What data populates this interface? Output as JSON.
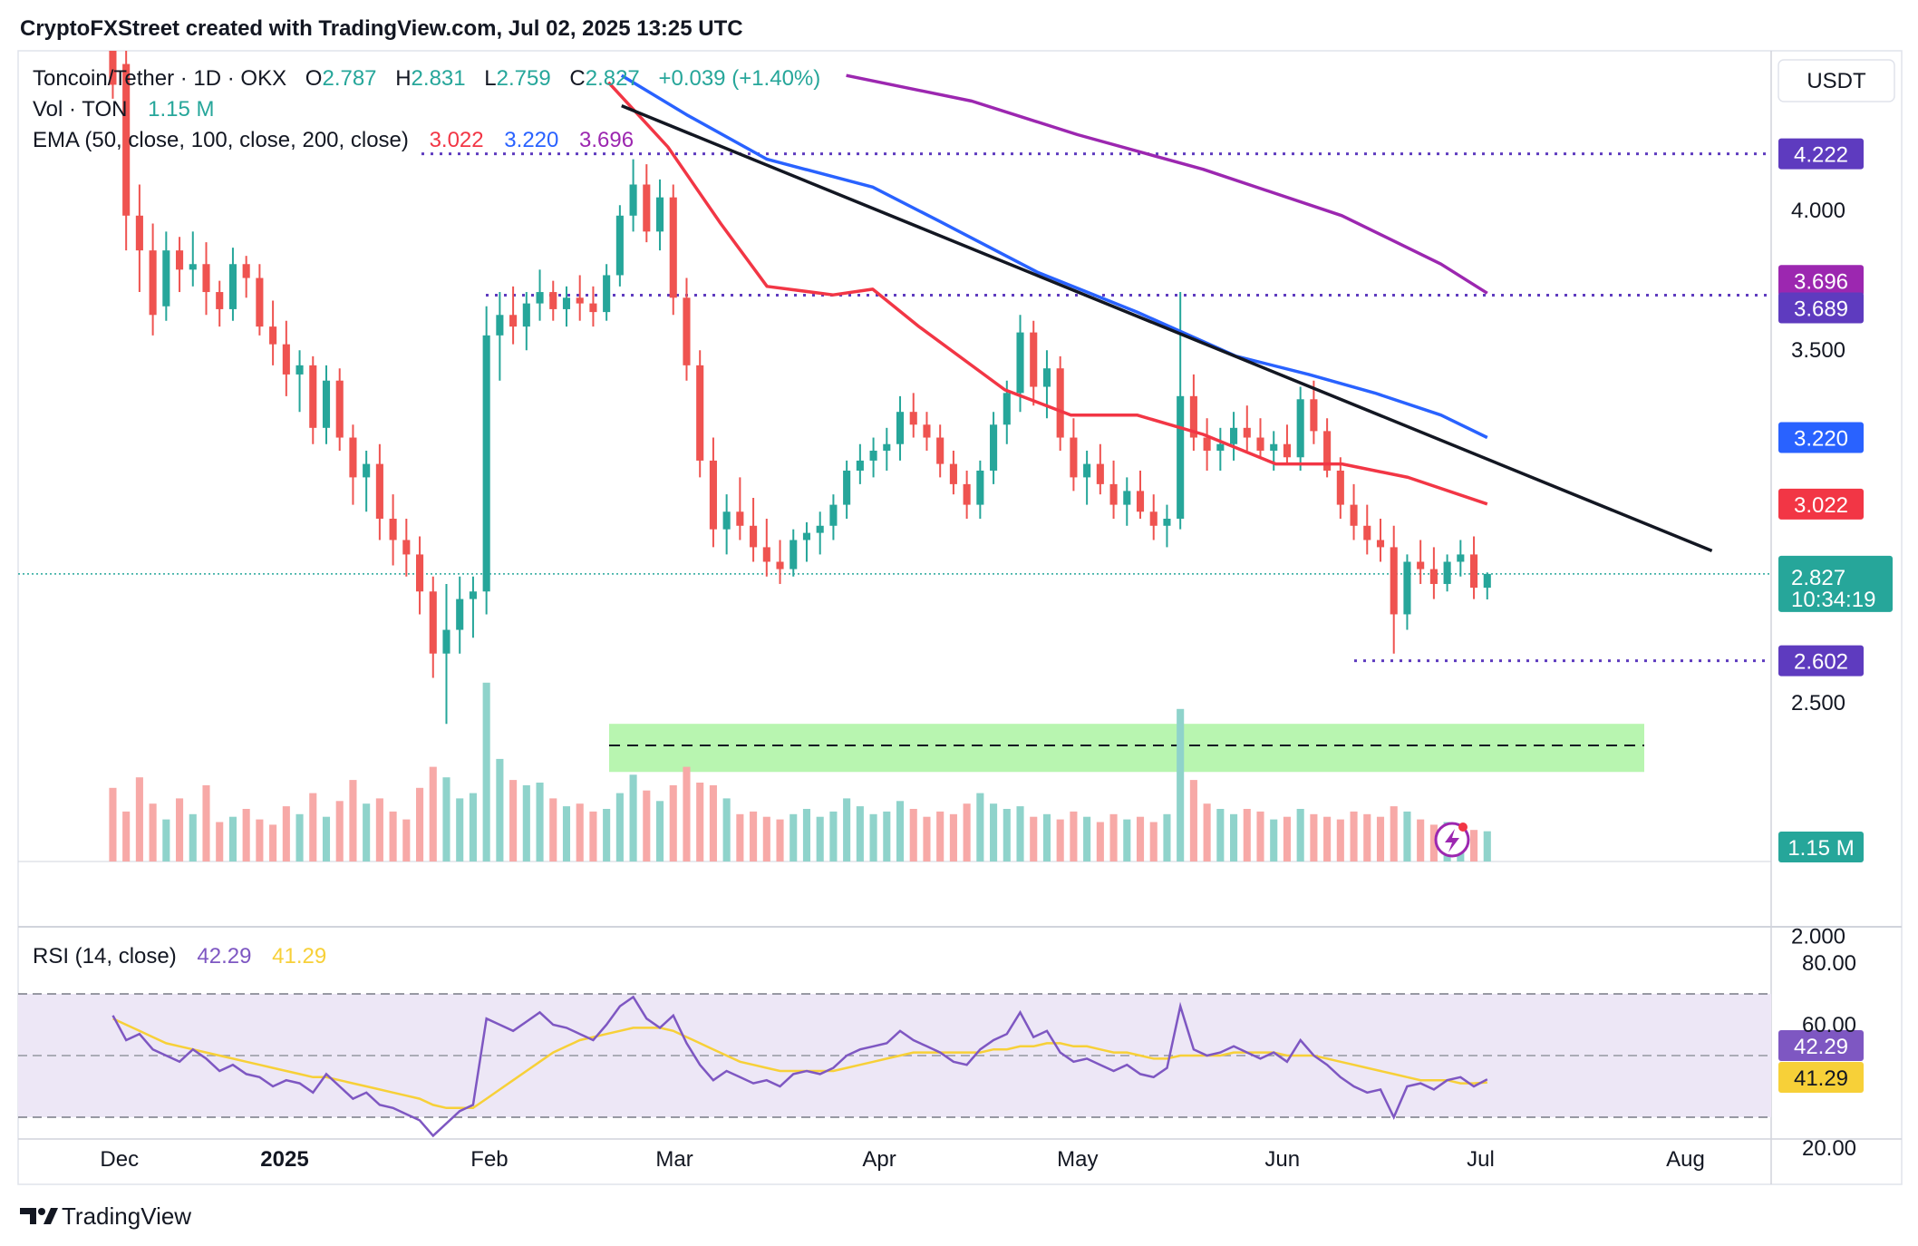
{
  "header": {
    "created_by": "CryptoFXStreet created with TradingView.com, Jul 02, 2025 13:25 UTC"
  },
  "legend": {
    "symbol": "Toncoin/Tether · 1D · OKX",
    "ohlc": [
      {
        "key": "O",
        "value": "2.787"
      },
      {
        "key": "H",
        "value": "2.831"
      },
      {
        "key": "L",
        "value": "2.759"
      },
      {
        "key": "C",
        "value": "2.827"
      }
    ],
    "change": "+0.039 (+1.40%)",
    "vol_label": "Vol · TON",
    "vol_value": "1.15 M",
    "ema_label": "EMA (50, close, 100, close, 200, close)",
    "ema_values": [
      "3.022",
      "3.220",
      "3.696"
    ],
    "rsi_label": "RSI (14, close)",
    "rsi_values": [
      "42.29",
      "41.29"
    ]
  },
  "currency": "USDT",
  "price_ticks": [
    "4.000",
    "3.500",
    "2.500",
    "2.000"
  ],
  "rsi_ticks": [
    "80.00",
    "60.00",
    "20.00"
  ],
  "x_ticks": [
    "Dec",
    "2025",
    "Feb",
    "Mar",
    "Apr",
    "May",
    "Jun",
    "Jul",
    "Aug"
  ],
  "price_labels": [
    {
      "id": "level-4222",
      "value": "4.222",
      "color": "#5e3bbf"
    },
    {
      "id": "ema200",
      "value": "3.696",
      "color": "#9c27b0"
    },
    {
      "id": "level-3689",
      "value": "3.689",
      "color": "#5e3bbf"
    },
    {
      "id": "ema100",
      "value": "3.220",
      "color": "#2962ff"
    },
    {
      "id": "ema50",
      "value": "3.022",
      "color": "#f23645"
    },
    {
      "id": "level-2602",
      "value": "2.602",
      "color": "#5e3bbf"
    },
    {
      "id": "volume",
      "value": "1.15 M",
      "color": "#26a69a"
    }
  ],
  "current_price": {
    "value": "2.827",
    "countdown": "10:34:19",
    "color": "#26a69a"
  },
  "rsi_labels": [
    {
      "id": "rsi",
      "value": "42.29",
      "color": "#7e57c2"
    },
    {
      "id": "rsi-ma",
      "value": "41.29",
      "color": "#f7d038"
    }
  ],
  "footer": {
    "brand": "TradingView"
  },
  "colors": {
    "up": "#26a69a",
    "down": "#ef5350",
    "ema50": "#f23645",
    "ema100": "#2962ff",
    "ema200": "#9c27b0",
    "level": "#5e3bbf",
    "support_zone": "#b8f5b0",
    "rsi": "#7e57c2",
    "rsi_ma": "#f7d038",
    "rsi_band": "#ede7f6"
  },
  "chart_data": {
    "type": "candlestick",
    "title": "Toncoin/Tether · 1D · OKX",
    "y_unit": "USDT",
    "ylim": [
      1.4,
      4.55
    ],
    "timeframe": "1D",
    "x_start_date": "2024-12-06",
    "x_end_date": "2025-07-02",
    "horizontal_levels": [
      4.222,
      3.689,
      2.602
    ],
    "support_zone": [
      2.34,
      2.45
    ],
    "support_midline": 2.4,
    "trendline": [
      {
        "date": "2025-02-21",
        "price": 4.42
      },
      {
        "date": "2025-08-05",
        "price": 2.89
      }
    ],
    "ema": [
      {
        "name": "EMA 50",
        "last": 3.022,
        "points": [
          [
            "2025-02-19",
            4.52
          ],
          [
            "2025-02-28",
            4.25
          ],
          [
            "2025-03-08",
            3.95
          ],
          [
            "2025-03-15",
            3.72
          ],
          [
            "2025-03-25",
            3.69
          ],
          [
            "2025-03-31",
            3.71
          ],
          [
            "2025-04-07",
            3.58
          ],
          [
            "2025-04-20",
            3.37
          ],
          [
            "2025-04-30",
            3.29
          ],
          [
            "2025-05-10",
            3.29
          ],
          [
            "2025-05-20",
            3.23
          ],
          [
            "2025-05-31",
            3.14
          ],
          [
            "2025-06-10",
            3.14
          ],
          [
            "2025-06-20",
            3.1
          ],
          [
            "2025-07-02",
            3.022
          ]
        ]
      },
      {
        "name": "EMA 100",
        "last": 3.22,
        "points": [
          [
            "2025-02-21",
            4.55
          ],
          [
            "2025-03-03",
            4.38
          ],
          [
            "2025-03-15",
            4.2
          ],
          [
            "2025-03-31",
            4.09
          ],
          [
            "2025-04-10",
            3.96
          ],
          [
            "2025-04-25",
            3.77
          ],
          [
            "2025-05-10",
            3.63
          ],
          [
            "2025-05-25",
            3.48
          ],
          [
            "2025-06-05",
            3.42
          ],
          [
            "2025-06-15",
            3.36
          ],
          [
            "2025-06-25",
            3.29
          ],
          [
            "2025-07-02",
            3.22
          ]
        ]
      },
      {
        "name": "EMA 200",
        "last": 3.696,
        "points": [
          [
            "2025-03-27",
            4.55
          ],
          [
            "2025-04-15",
            4.44
          ],
          [
            "2025-05-01",
            4.3
          ],
          [
            "2025-05-20",
            4.16
          ],
          [
            "2025-06-10",
            3.98
          ],
          [
            "2025-06-25",
            3.8
          ],
          [
            "2025-07-02",
            3.696
          ]
        ]
      }
    ],
    "candles_ohlc_order": "o,h,l,c",
    "candles": [
      [
        4.7,
        5.4,
        4.45,
        4.55
      ],
      [
        4.6,
        4.75,
        3.85,
        3.98
      ],
      [
        3.98,
        4.1,
        3.7,
        3.85
      ],
      [
        3.85,
        3.95,
        3.55,
        3.62
      ],
      [
        3.65,
        3.92,
        3.6,
        3.85
      ],
      [
        3.85,
        3.9,
        3.7,
        3.78
      ],
      [
        3.78,
        3.92,
        3.72,
        3.8
      ],
      [
        3.8,
        3.88,
        3.62,
        3.7
      ],
      [
        3.7,
        3.74,
        3.58,
        3.64
      ],
      [
        3.64,
        3.86,
        3.6,
        3.8
      ],
      [
        3.8,
        3.83,
        3.68,
        3.75
      ],
      [
        3.75,
        3.8,
        3.55,
        3.58
      ],
      [
        3.58,
        3.67,
        3.45,
        3.52
      ],
      [
        3.52,
        3.6,
        3.35,
        3.42
      ],
      [
        3.42,
        3.5,
        3.3,
        3.45
      ],
      [
        3.45,
        3.48,
        3.2,
        3.25
      ],
      [
        3.25,
        3.45,
        3.2,
        3.4
      ],
      [
        3.4,
        3.44,
        3.18,
        3.22
      ],
      [
        3.22,
        3.26,
        3.02,
        3.1
      ],
      [
        3.1,
        3.18,
        3.0,
        3.14
      ],
      [
        3.14,
        3.2,
        2.92,
        2.98
      ],
      [
        2.98,
        3.05,
        2.85,
        2.92
      ],
      [
        2.92,
        2.98,
        2.82,
        2.88
      ],
      [
        2.88,
        2.93,
        2.72,
        2.78
      ],
      [
        2.78,
        2.82,
        2.56,
        2.62
      ],
      [
        2.62,
        2.8,
        2.45,
        2.68
      ],
      [
        2.68,
        2.82,
        2.62,
        2.76
      ],
      [
        2.76,
        2.82,
        2.66,
        2.78
      ],
      [
        2.78,
        3.65,
        2.72,
        3.55
      ],
      [
        3.55,
        3.7,
        3.4,
        3.62
      ],
      [
        3.62,
        3.72,
        3.52,
        3.58
      ],
      [
        3.58,
        3.7,
        3.5,
        3.66
      ],
      [
        3.66,
        3.78,
        3.6,
        3.7
      ],
      [
        3.7,
        3.74,
        3.6,
        3.64
      ],
      [
        3.64,
        3.72,
        3.58,
        3.68
      ],
      [
        3.68,
        3.76,
        3.6,
        3.66
      ],
      [
        3.66,
        3.72,
        3.58,
        3.63
      ],
      [
        3.63,
        3.8,
        3.6,
        3.76
      ],
      [
        3.76,
        4.02,
        3.72,
        3.98
      ],
      [
        3.98,
        4.2,
        3.92,
        4.1
      ],
      [
        4.1,
        4.18,
        3.88,
        3.92
      ],
      [
        3.92,
        4.12,
        3.85,
        4.05
      ],
      [
        4.05,
        4.1,
        3.62,
        3.68
      ],
      [
        3.68,
        3.75,
        3.4,
        3.45
      ],
      [
        3.45,
        3.5,
        3.1,
        3.15
      ],
      [
        3.15,
        3.22,
        2.9,
        2.95
      ],
      [
        2.95,
        3.05,
        2.88,
        3.0
      ],
      [
        3.0,
        3.1,
        2.92,
        2.96
      ],
      [
        2.96,
        3.04,
        2.86,
        2.9
      ],
      [
        2.9,
        2.98,
        2.82,
        2.86
      ],
      [
        2.86,
        2.92,
        2.8,
        2.84
      ],
      [
        2.84,
        2.95,
        2.82,
        2.92
      ],
      [
        2.92,
        2.97,
        2.86,
        2.94
      ],
      [
        2.94,
        3.0,
        2.88,
        2.96
      ],
      [
        2.96,
        3.05,
        2.92,
        3.02
      ],
      [
        3.02,
        3.15,
        2.98,
        3.12
      ],
      [
        3.12,
        3.2,
        3.08,
        3.15
      ],
      [
        3.15,
        3.22,
        3.1,
        3.18
      ],
      [
        3.18,
        3.25,
        3.12,
        3.2
      ],
      [
        3.2,
        3.35,
        3.15,
        3.3
      ],
      [
        3.3,
        3.36,
        3.22,
        3.26
      ],
      [
        3.26,
        3.3,
        3.18,
        3.22
      ],
      [
        3.22,
        3.26,
        3.1,
        3.14
      ],
      [
        3.14,
        3.18,
        3.05,
        3.08
      ],
      [
        3.08,
        3.12,
        2.98,
        3.02
      ],
      [
        3.02,
        3.15,
        2.98,
        3.12
      ],
      [
        3.12,
        3.3,
        3.08,
        3.26
      ],
      [
        3.26,
        3.4,
        3.2,
        3.36
      ],
      [
        3.36,
        3.62,
        3.3,
        3.56
      ],
      [
        3.56,
        3.6,
        3.32,
        3.38
      ],
      [
        3.38,
        3.5,
        3.28,
        3.44
      ],
      [
        3.44,
        3.48,
        3.18,
        3.22
      ],
      [
        3.22,
        3.28,
        3.06,
        3.1
      ],
      [
        3.1,
        3.18,
        3.02,
        3.14
      ],
      [
        3.14,
        3.2,
        3.05,
        3.08
      ],
      [
        3.08,
        3.15,
        2.98,
        3.02
      ],
      [
        3.02,
        3.1,
        2.96,
        3.06
      ],
      [
        3.06,
        3.12,
        2.98,
        3.0
      ],
      [
        3.0,
        3.05,
        2.92,
        2.96
      ],
      [
        2.96,
        3.02,
        2.9,
        2.98
      ],
      [
        2.98,
        3.7,
        2.95,
        3.35
      ],
      [
        3.35,
        3.42,
        3.18,
        3.22
      ],
      [
        3.22,
        3.28,
        3.12,
        3.18
      ],
      [
        3.18,
        3.25,
        3.12,
        3.2
      ],
      [
        3.2,
        3.3,
        3.15,
        3.25
      ],
      [
        3.25,
        3.32,
        3.18,
        3.22
      ],
      [
        3.22,
        3.28,
        3.16,
        3.18
      ],
      [
        3.18,
        3.24,
        3.12,
        3.2
      ],
      [
        3.2,
        3.26,
        3.14,
        3.16
      ],
      [
        3.16,
        3.38,
        3.12,
        3.34
      ],
      [
        3.34,
        3.4,
        3.2,
        3.24
      ],
      [
        3.24,
        3.28,
        3.1,
        3.12
      ],
      [
        3.12,
        3.16,
        2.98,
        3.02
      ],
      [
        3.02,
        3.08,
        2.92,
        2.96
      ],
      [
        2.96,
        3.02,
        2.88,
        2.92
      ],
      [
        2.92,
        2.98,
        2.86,
        2.9
      ],
      [
        2.9,
        2.96,
        2.62,
        2.72
      ],
      [
        2.72,
        2.88,
        2.68,
        2.86
      ],
      [
        2.86,
        2.92,
        2.8,
        2.84
      ],
      [
        2.84,
        2.9,
        2.76,
        2.8
      ],
      [
        2.8,
        2.88,
        2.78,
        2.86
      ],
      [
        2.86,
        2.92,
        2.82,
        2.88
      ],
      [
        2.88,
        2.93,
        2.76,
        2.79
      ],
      [
        2.79,
        2.831,
        2.759,
        2.827
      ]
    ],
    "volume": {
      "unit": "M TON",
      "last": 1.15,
      "values": [
        2.8,
        1.9,
        3.2,
        2.2,
        1.6,
        2.4,
        1.8,
        2.9,
        1.5,
        1.7,
        2.0,
        1.6,
        1.4,
        2.1,
        1.8,
        2.6,
        1.7,
        2.3,
        3.1,
        2.2,
        2.4,
        1.9,
        1.6,
        2.8,
        3.6,
        3.2,
        2.4,
        2.6,
        6.8,
        3.9,
        3.1,
        2.9,
        3.0,
        2.4,
        2.1,
        2.2,
        1.9,
        2.0,
        2.6,
        3.3,
        2.7,
        2.3,
        2.9,
        3.6,
        3.0,
        2.9,
        2.4,
        1.8,
        1.9,
        1.7,
        1.6,
        1.8,
        2.0,
        1.7,
        1.9,
        2.4,
        2.1,
        1.8,
        1.9,
        2.3,
        2.0,
        1.7,
        1.9,
        1.8,
        2.2,
        2.6,
        2.2,
        2.0,
        2.1,
        1.7,
        1.8,
        1.6,
        1.9,
        1.7,
        1.5,
        1.8,
        1.6,
        1.7,
        1.5,
        1.8,
        5.8,
        3.1,
        2.2,
        2.0,
        1.8,
        2.0,
        1.9,
        1.6,
        1.7,
        2.0,
        1.8,
        1.7,
        1.6,
        1.9,
        1.8,
        1.7,
        2.1,
        1.9,
        1.6,
        1.4,
        1.5,
        1.3,
        1.2,
        1.15
      ]
    },
    "rsi": {
      "ylim": [
        10,
        90
      ],
      "levels": [
        70,
        50,
        30
      ],
      "rsi_values": [
        63,
        55,
        57,
        52,
        50,
        48,
        52,
        49,
        45,
        47,
        44,
        43,
        40,
        42,
        41,
        38,
        44,
        40,
        36,
        38,
        34,
        33,
        31,
        29,
        24,
        28,
        32,
        34,
        62,
        60,
        58,
        61,
        64,
        60,
        59,
        57,
        55,
        60,
        66,
        69,
        62,
        59,
        63,
        54,
        47,
        42,
        45,
        43,
        41,
        42,
        40,
        44,
        45,
        44,
        46,
        50,
        52,
        53,
        54,
        58,
        55,
        53,
        51,
        48,
        47,
        52,
        55,
        57,
        64,
        56,
        58,
        51,
        48,
        49,
        47,
        45,
        47,
        44,
        43,
        46,
        66,
        52,
        50,
        51,
        53,
        51,
        49,
        51,
        48,
        55,
        50,
        47,
        43,
        40,
        38,
        39,
        30,
        40,
        41,
        39,
        42,
        43,
        40,
        42.29
      ],
      "rsi_ma_values": [
        62,
        60,
        58,
        56,
        54,
        53,
        52,
        51,
        50,
        49,
        48,
        47,
        46,
        45,
        44,
        43,
        43,
        42,
        41,
        40,
        39,
        38,
        37,
        36,
        34,
        33,
        33,
        33,
        36,
        39,
        42,
        45,
        48,
        51,
        53,
        55,
        56,
        57,
        58,
        59,
        59,
        59,
        58,
        56,
        54,
        52,
        50,
        48,
        47,
        46,
        45,
        45,
        45,
        45,
        45,
        46,
        47,
        48,
        49,
        50,
        51,
        51,
        51,
        51,
        51,
        51,
        52,
        52,
        53,
        53,
        54,
        54,
        53,
        53,
        52,
        51,
        51,
        50,
        49,
        49,
        50,
        50,
        50,
        50,
        51,
        51,
        51,
        51,
        50,
        50,
        50,
        49,
        48,
        47,
        46,
        45,
        44,
        43,
        42,
        42,
        42,
        41,
        41,
        41.29
      ]
    }
  }
}
